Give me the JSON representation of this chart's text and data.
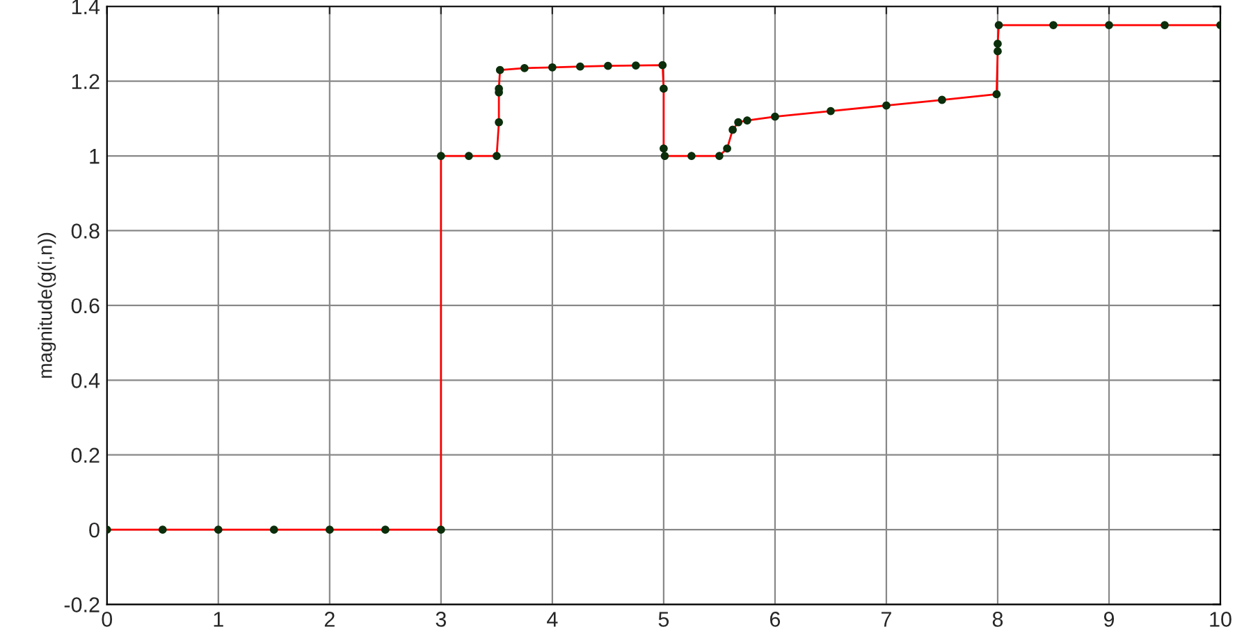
{
  "chart_data": {
    "type": "line",
    "ylabel": "magnitude(g(i,n))",
    "x": [
      0,
      0.5,
      1,
      1.5,
      2,
      2.5,
      3,
      3,
      3.25,
      3.5,
      3.52,
      3.52,
      3.52,
      3.53,
      3.75,
      4,
      4.25,
      4.5,
      4.75,
      4.99,
      5,
      5,
      5.01,
      5.25,
      5.5,
      5.57,
      5.62,
      5.67,
      5.75,
      6,
      6.5,
      7,
      7.5,
      7.99,
      8,
      8,
      8.01,
      8.5,
      9,
      9.5,
      10
    ],
    "series": [
      {
        "color": "#ff0000",
        "marker": "none",
        "values": [
          0,
          0,
          0,
          0,
          0,
          0,
          0,
          1,
          1,
          1,
          1.09,
          1.17,
          1.18,
          1.23,
          1.235,
          1.237,
          1.239,
          1.241,
          1.242,
          1.243,
          1.18,
          1.02,
          1.0,
          1.0,
          1.0,
          1.02,
          1.07,
          1.09,
          1.095,
          1.105,
          1.12,
          1.135,
          1.15,
          1.165,
          1.28,
          1.3,
          1.35,
          1.35,
          1.35,
          1.35,
          1.35
        ]
      },
      {
        "type": "scatter",
        "color": "#0b2e0b",
        "marker": "circle",
        "values": [
          0,
          0,
          0,
          0,
          0,
          0,
          0,
          1,
          1,
          1,
          1.09,
          1.17,
          1.18,
          1.23,
          1.235,
          1.237,
          1.239,
          1.241,
          1.242,
          1.243,
          1.18,
          1.02,
          1.0,
          1.0,
          1.0,
          1.02,
          1.07,
          1.09,
          1.095,
          1.105,
          1.12,
          1.135,
          1.15,
          1.165,
          1.28,
          1.3,
          1.35,
          1.35,
          1.35,
          1.35,
          1.35
        ]
      }
    ],
    "xlim": [
      0,
      10
    ],
    "xticks": [
      0,
      1,
      2,
      3,
      4,
      5,
      6,
      7,
      8,
      9,
      10
    ],
    "ylim": [
      -0.2,
      1.4
    ],
    "yticks": [
      -0.2,
      0,
      0.2,
      0.4,
      0.6,
      0.8,
      1,
      1.2,
      1.4
    ],
    "grid": true,
    "legend": false
  }
}
